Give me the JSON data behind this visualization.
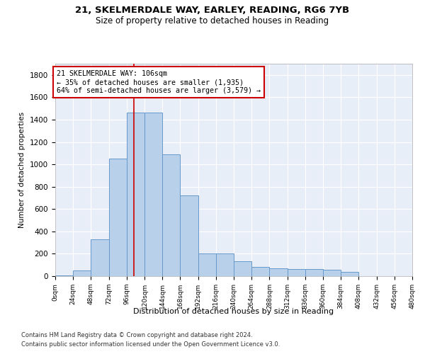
{
  "title1": "21, SKELMERDALE WAY, EARLEY, READING, RG6 7YB",
  "title2": "Size of property relative to detached houses in Reading",
  "xlabel": "Distribution of detached houses by size in Reading",
  "ylabel": "Number of detached properties",
  "bar_color": "#b8d0ea",
  "bar_edge_color": "#6699cc",
  "background_color": "#e8eef8",
  "grid_color": "#ffffff",
  "annotation_box_color": "#cc0000",
  "vline_color": "#cc0000",
  "property_size": 106,
  "bin_width": 24,
  "bin_starts": [
    0,
    24,
    48,
    72,
    96,
    120,
    144,
    168,
    192,
    216,
    240,
    264,
    288,
    312,
    336,
    360,
    384,
    408,
    432,
    456
  ],
  "bar_heights": [
    5,
    50,
    330,
    1050,
    1460,
    1460,
    1090,
    720,
    200,
    200,
    130,
    80,
    70,
    65,
    65,
    55,
    40,
    0,
    0,
    0
  ],
  "ylim": [
    0,
    1900
  ],
  "yticks": [
    0,
    200,
    400,
    600,
    800,
    1000,
    1200,
    1400,
    1600,
    1800
  ],
  "annotation_text": "21 SKELMERDALE WAY: 106sqm\n← 35% of detached houses are smaller (1,935)\n64% of semi-detached houses are larger (3,579) →",
  "footnote1": "Contains HM Land Registry data © Crown copyright and database right 2024.",
  "footnote2": "Contains public sector information licensed under the Open Government Licence v3.0."
}
